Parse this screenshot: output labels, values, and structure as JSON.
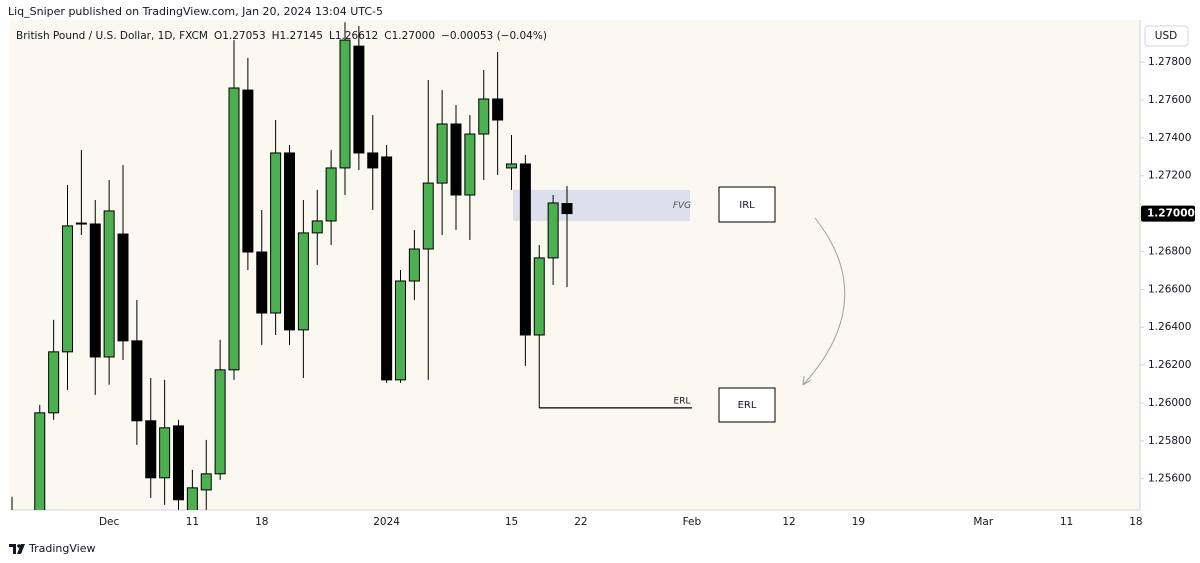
{
  "chart_data": {
    "type": "candlestick",
    "publisher": "Liq_Sniper published on TradingView.com, Jan 20, 2024 13:04 UTC-5",
    "legend": {
      "symbol": "British Pound / U.S. Dollar, 1D, FXCM",
      "open": "O1.27053",
      "high": "H1.27145",
      "low": "L1.26612",
      "close": "C1.27000",
      "change": "−0.00053 (−0.04%)"
    },
    "currency": "USD",
    "brand": "TradingView",
    "up_color": "#4caf50",
    "down_color": "#000000",
    "categories": [
      null,
      null,
      null,
      null,
      null,
      null,
      null,
      "Dec",
      null,
      null,
      null,
      null,
      null,
      "11",
      null,
      null,
      null,
      null,
      "18",
      null,
      null,
      null,
      null,
      null,
      null,
      null,
      null,
      "2024",
      null,
      null,
      null,
      null,
      null,
      null,
      null,
      null,
      "15",
      null,
      null,
      null,
      null,
      "22",
      null,
      null,
      null,
      null,
      null,
      null,
      null,
      "Feb",
      null,
      null,
      null,
      null,
      null,
      null,
      "12",
      null,
      null,
      null,
      null,
      "19",
      null,
      null,
      null,
      null,
      null,
      null,
      null,
      null,
      "Mar",
      null,
      null,
      null,
      null,
      null,
      "11",
      null,
      null,
      null,
      null,
      "18"
    ],
    "open": [
      1.254,
      null,
      1.254,
      1.25948,
      1.2627,
      1.26945,
      1.26945,
      1.26243,
      1.26892,
      1.26328,
      1.25906,
      1.25605,
      1.25879,
      1.2542,
      1.25541,
      1.25626,
      1.26175,
      1.27652,
      1.26797,
      1.26475,
      1.2732,
      1.26386,
      1.26898,
      1.26961,
      1.27241,
      1.27884,
      1.2732,
      1.27299,
      1.26122,
      1.26644,
      1.26813,
      1.27161,
      1.27473,
      1.27098,
      1.2742,
      1.27605,
      1.27241,
      1.27262,
      1.26359,
      1.26766,
      1.27053,
      null,
      null,
      null,
      null,
      null,
      null,
      null,
      null,
      null,
      null,
      null,
      null,
      null,
      null,
      null,
      null,
      null,
      null,
      null,
      null,
      null,
      null,
      null,
      null,
      null,
      null,
      null,
      null,
      null,
      null,
      null,
      null,
      null,
      null,
      null,
      null,
      null,
      null,
      null,
      null,
      null
    ],
    "high": [
      1.25505,
      null,
      1.2599,
      1.26439,
      1.27151,
      1.27336,
      1.27072,
      1.27177,
      1.27256,
      1.26544,
      1.26132,
      1.26122,
      1.25911,
      1.25647,
      1.25805,
      1.26333,
      1.27916,
      1.27822,
      1.27019,
      1.27494,
      1.27362,
      1.27072,
      1.27125,
      1.27336,
      1.2801,
      1.2799,
      1.2752,
      1.27362,
      1.26702,
      1.26913,
      1.27705,
      1.27652,
      1.27573,
      1.2752,
      1.27758,
      1.27853,
      1.27415,
      1.27309,
      1.26834,
      1.27098,
      1.27145,
      null,
      null,
      null,
      null,
      null,
      null,
      null,
      null,
      null,
      null,
      null,
      null,
      null,
      null,
      null,
      null,
      null,
      null,
      null,
      null,
      null,
      null,
      null,
      null,
      null,
      null,
      null,
      null,
      null,
      null,
      null,
      null,
      null,
      null,
      null,
      null,
      null,
      null,
      null,
      null,
      null
    ],
    "low": [
      1.2535,
      null,
      1.2538,
      1.25911,
      1.26069,
      1.26887,
      1.26043,
      1.26096,
      1.26227,
      1.25779,
      1.25499,
      1.25462,
      1.25436,
      1.2538,
      1.25436,
      1.25594,
      1.26122,
      1.26702,
      1.26307,
      1.26359,
      1.26307,
      1.26132,
      1.26729,
      1.26834,
      1.27098,
      1.2723,
      1.27019,
      1.26106,
      1.26106,
      1.26544,
      1.26122,
      1.26887,
      1.26913,
      1.26861,
      1.27177,
      1.27204,
      1.27125,
      1.26196,
      1.25974,
      1.26623,
      1.26612,
      null,
      null,
      null,
      null,
      null,
      null,
      null,
      null,
      null,
      null,
      null,
      null,
      null,
      null,
      null,
      null,
      null,
      null,
      null,
      null,
      null,
      null,
      null,
      null,
      null,
      null,
      null,
      null,
      null,
      null,
      null,
      null,
      null,
      null,
      null,
      null,
      null,
      null,
      null,
      null,
      null
    ],
    "close": [
      1.2542,
      null,
      1.25948,
      1.2627,
      1.26935,
      1.2695,
      1.26243,
      1.27014,
      1.26328,
      1.25906,
      1.25605,
      1.25869,
      1.25489,
      1.25552,
      1.25626,
      1.26175,
      1.27663,
      1.26797,
      1.26475,
      1.2732,
      1.26386,
      1.26898,
      1.26961,
      1.27241,
      1.27916,
      1.2732,
      1.27241,
      1.26122,
      1.26644,
      1.26813,
      1.27161,
      1.27473,
      1.27098,
      1.2742,
      1.27605,
      1.27494,
      1.27262,
      1.26359,
      1.26766,
      1.27056,
      1.27,
      null,
      null,
      null,
      null,
      null,
      null,
      null,
      null,
      null,
      null,
      null,
      null,
      null,
      null,
      null,
      null,
      null,
      null,
      null,
      null,
      null,
      null,
      null,
      null,
      null,
      null,
      null,
      null,
      null,
      null,
      null,
      null,
      null,
      null,
      null,
      null,
      null,
      null,
      null,
      null,
      null
    ],
    "ylim": [
      1.25435,
      1.28022
    ],
    "yticks": [
      {
        "value": 1.256,
        "label": "1.25600"
      },
      {
        "value": 1.258,
        "label": "1.25800"
      },
      {
        "value": 1.26,
        "label": "1.26000"
      },
      {
        "value": 1.262,
        "label": "1.26200"
      },
      {
        "value": 1.264,
        "label": "1.26400"
      },
      {
        "value": 1.266,
        "label": "1.26600"
      },
      {
        "value": 1.268,
        "label": "1.26800"
      },
      {
        "value": 1.272,
        "label": "1.27200"
      },
      {
        "value": 1.274,
        "label": "1.27400"
      },
      {
        "value": 1.276,
        "label": "1.27600"
      },
      {
        "value": 1.278,
        "label": "1.27800"
      }
    ],
    "last_price": {
      "value": 1.27,
      "label": "1.27000"
    },
    "fvg": {
      "label": "FVG",
      "range": [
        1.26961,
        1.27125
      ]
    },
    "erl_line": {
      "label": "ERL",
      "value": 1.25974
    },
    "irl_box": "IRL",
    "erl_box": "ERL",
    "grid": false
  }
}
